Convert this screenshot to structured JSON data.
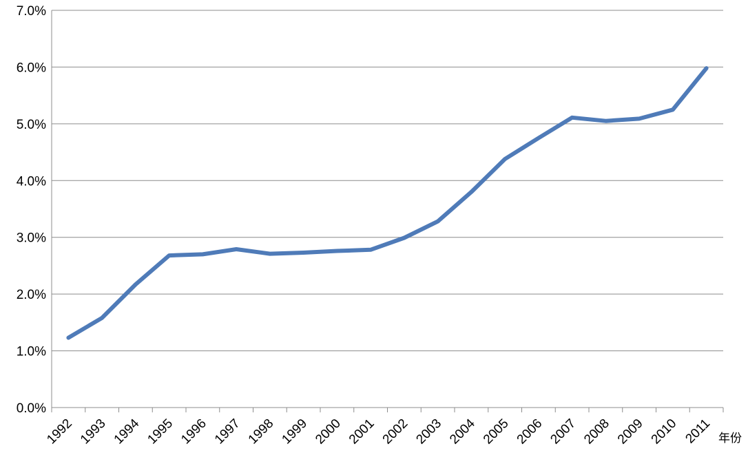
{
  "chart_data": {
    "type": "line",
    "title": "",
    "xlabel": "年份",
    "ylabel": "",
    "x": [
      "1992",
      "1993",
      "1994",
      "1995",
      "1996",
      "1997",
      "1998",
      "1999",
      "2000",
      "2001",
      "2002",
      "2003",
      "2004",
      "2005",
      "2006",
      "2007",
      "2008",
      "2009",
      "2010",
      "2011"
    ],
    "series": [
      {
        "values": [
          1.23,
          1.58,
          2.17,
          2.68,
          2.7,
          2.79,
          2.71,
          2.73,
          2.76,
          2.78,
          2.99,
          3.28,
          3.8,
          4.38,
          4.75,
          5.11,
          5.05,
          5.09,
          5.25,
          5.98
        ],
        "color": "#4f7bb8"
      }
    ],
    "ylim": [
      0,
      7
    ],
    "yticks": [
      "0.0%",
      "1.0%",
      "2.0%",
      "3.0%",
      "4.0%",
      "5.0%",
      "6.0%",
      "7.0%"
    ],
    "grid": true,
    "legend": "none"
  }
}
